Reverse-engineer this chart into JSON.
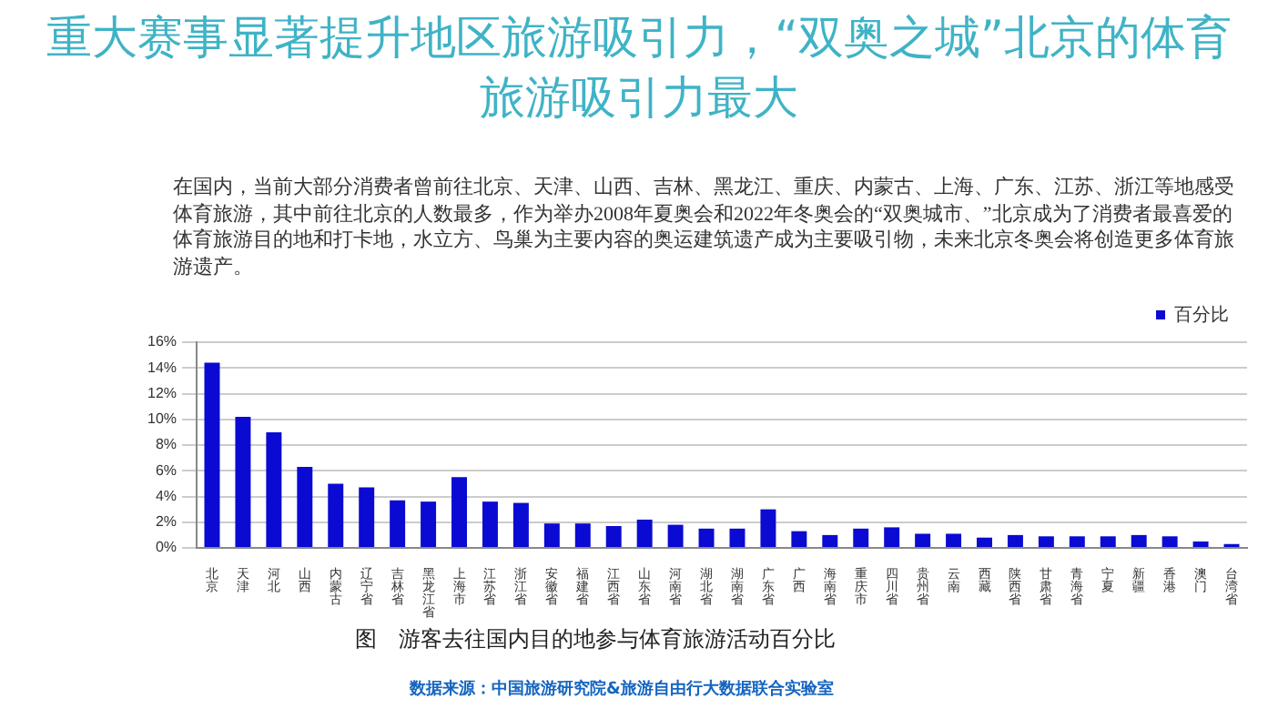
{
  "chart_data": {
    "type": "bar",
    "title": "重大赛事显著提升地区旅游吸引力，“双奥之城”北京的体育旅游吸引力最大",
    "subtitle": "在国内，当前大部分消费者曾前往北京、天津、山西、吉林、黑龙江、重庆、内蒙古、上海、广东、江苏、浙江等地感受体育旅游，其中前往北京的人数最多，作为举办2008年夏奥会和2022年冬奥会的“双奥城市、”北京成为了消费者最喜爱的体育旅游目的地和打卡地，水立方、鸟巢为主要内容的奥运建筑遗产成为主要吸引物，未来北京冬奥会将创造更多体育旅游遗产。",
    "categories": [
      "北京",
      "天津",
      "河北",
      "山西",
      "内蒙古",
      "辽宁省",
      "吉林省",
      "黑龙江省",
      "上海市",
      "江苏省",
      "浙江省",
      "安徽省",
      "福建省",
      "江西省",
      "山东省",
      "河南省",
      "湖北省",
      "湖南省",
      "广东省",
      "广西",
      "海南省",
      "重庆市",
      "四川省",
      "贵州省",
      "云南",
      "西藏",
      "陕西省",
      "甘肃省",
      "青海省",
      "宁夏",
      "新疆",
      "香港",
      "澳门",
      "台湾省"
    ],
    "series": [
      {
        "name": "百分比",
        "color": "#0a0ad2",
        "values": [
          14.4,
          10.2,
          9.0,
          6.3,
          5.0,
          4.7,
          3.7,
          3.6,
          5.5,
          3.6,
          3.5,
          1.9,
          1.9,
          1.7,
          2.2,
          1.8,
          1.5,
          1.5,
          3.0,
          1.3,
          1.0,
          1.5,
          1.6,
          1.1,
          1.1,
          0.8,
          1.0,
          0.9,
          0.9,
          0.9,
          1.0,
          0.9,
          0.5,
          0.3
        ]
      }
    ],
    "ylim": [
      0,
      16
    ],
    "yticks": [
      {
        "value": 0,
        "label": "0%"
      },
      {
        "value": 2,
        "label": "2%"
      },
      {
        "value": 4,
        "label": "4%"
      },
      {
        "value": 6,
        "label": "6%"
      },
      {
        "value": 8,
        "label": "8%"
      },
      {
        "value": 10,
        "label": "10%"
      },
      {
        "value": 12,
        "label": "12%"
      },
      {
        "value": 14,
        "label": "14%"
      },
      {
        "value": 16,
        "label": "16%"
      }
    ],
    "grid": "y",
    "legend": "top right",
    "annotations": [
      "图　游客去往国内目的地参与体育旅游活动百分比",
      "数据来源：中国旅游研究院&旅游自由行大数据联合实验室"
    ]
  }
}
